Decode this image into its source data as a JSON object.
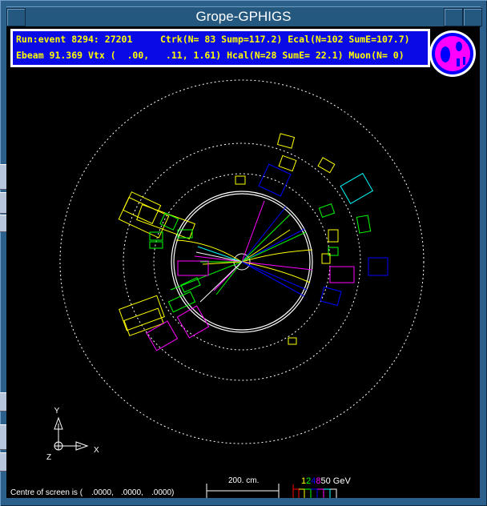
{
  "window": {
    "title": "Grope-GPHIGS"
  },
  "info": {
    "line1": "Run:event 8294: 27201     Ctrk(N= 83 Sump=117.2) Ecal(N=102 SumE=107.7)",
    "line2": "Ebeam 91.369 Vtx (  .00,   .11, 1.61) Hcal(N=28 SumE= 22.1) Muon(N= 0)"
  },
  "logo": {
    "text": "OPAL"
  },
  "axes": {
    "y": "Y",
    "x": "X",
    "z": "Z"
  },
  "footer": {
    "centre_label": "Centre of screen is (",
    "centre_values": [
      ".0000,",
      ".0000,",
      ".0000)"
    ],
    "scale_label": "200. cm.",
    "energy_scale": [
      {
        "label": "1",
        "color": "#ffff00"
      },
      {
        "label": "2",
        "color": "#00ff00"
      },
      {
        "label": "4",
        "color": "#0000ff"
      },
      {
        "label": "8",
        "color": "#ff00ff"
      },
      {
        "label": "50 GeV",
        "color": "#ffffff"
      }
    ]
  },
  "colors": {
    "frame": "#2b5f8c",
    "info_bg": "#0a0ae6",
    "info_text": "#ffff00"
  }
}
